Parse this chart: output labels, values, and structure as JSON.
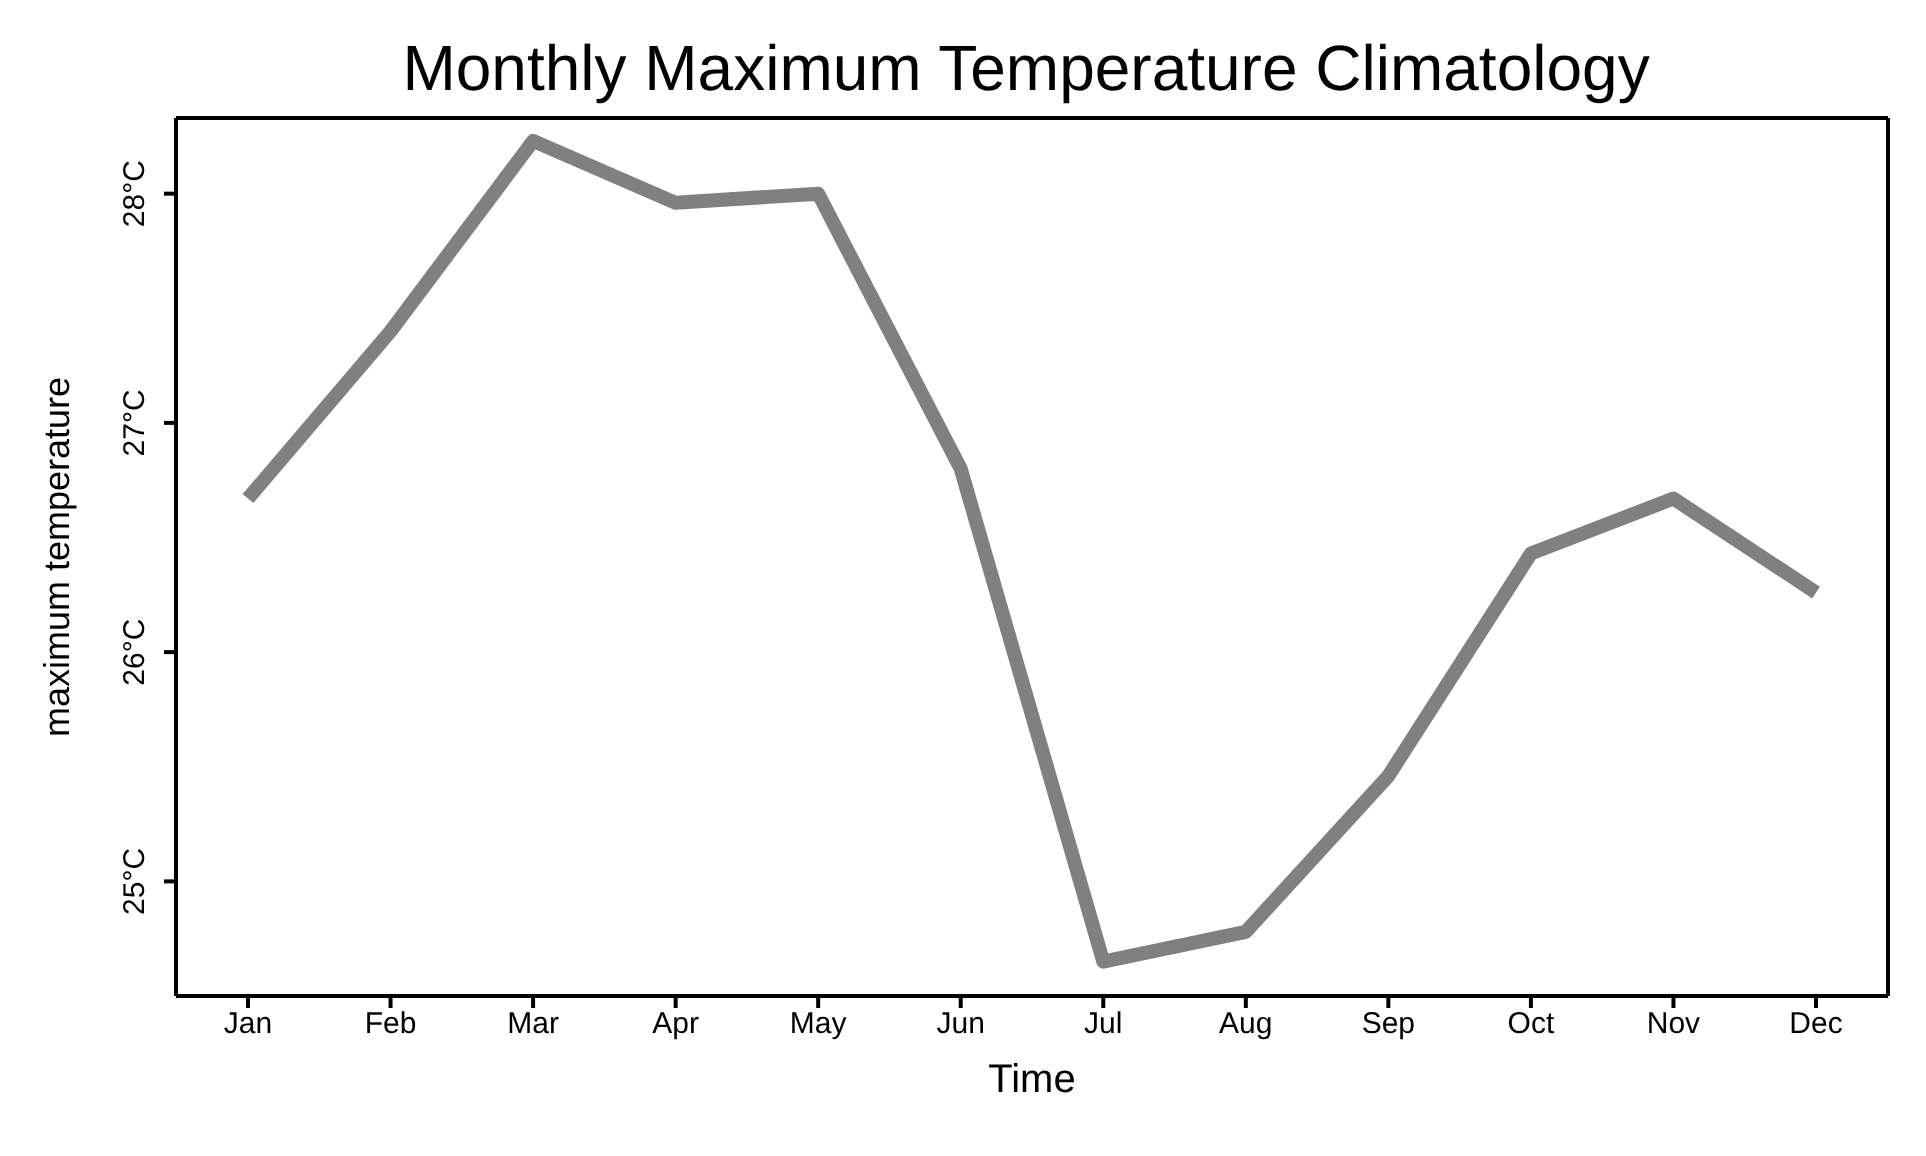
{
  "chart_data": {
    "type": "line",
    "title": "Monthly Maximum Temperature Climatology",
    "xlabel": "Time",
    "ylabel": "maximum temperature",
    "categories": [
      "Jan",
      "Feb",
      "Mar",
      "Apr",
      "May",
      "Jun",
      "Jul",
      "Aug",
      "Sep",
      "Oct",
      "Nov",
      "Dec"
    ],
    "series": [
      {
        "color": "#808080",
        "values": [
          26.67,
          27.4,
          28.23,
          27.96,
          28.0,
          26.8,
          24.65,
          24.78,
          25.46,
          26.43,
          26.67,
          26.26
        ]
      }
    ],
    "ylim": [
      24.5,
      28.33
    ],
    "yticks": [
      {
        "value": 25,
        "label": "25°C"
      },
      {
        "value": 26,
        "label": "26°C"
      },
      {
        "value": 27,
        "label": "27°C"
      },
      {
        "value": 28,
        "label": "28°C"
      }
    ],
    "grid": false,
    "marker": "none",
    "line_style": "solid"
  }
}
